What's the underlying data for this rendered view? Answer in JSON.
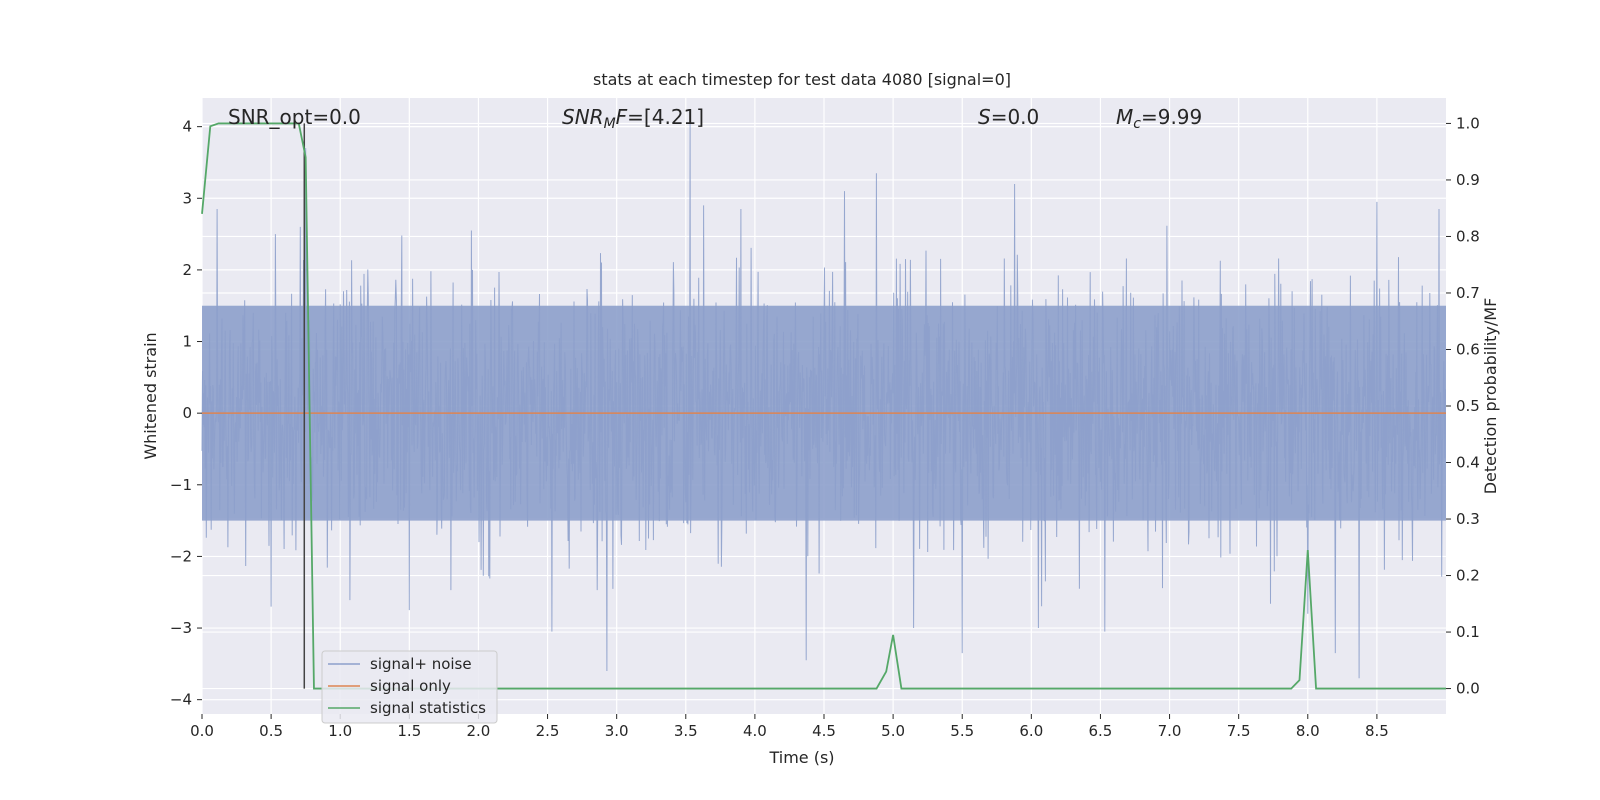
{
  "chart_data": {
    "type": "line",
    "title": "stats at each timestep for test data 4080 [signal=0]",
    "xlabel": "Time (s)",
    "ylabel": "Whitened strain",
    "y2label": "Detection probability/MF",
    "xlim": [
      0,
      9.0
    ],
    "ylim": [
      -4.2,
      4.4
    ],
    "y2lim": [
      -0.045,
      1.045
    ],
    "xticks": [
      0.0,
      0.5,
      1.0,
      1.5,
      2.0,
      2.5,
      3.0,
      3.5,
      4.0,
      4.5,
      5.0,
      5.5,
      6.0,
      6.5,
      7.0,
      7.5,
      8.0,
      8.5
    ],
    "xtick_labels": [
      "0.0",
      "0.5",
      "1.0",
      "1.5",
      "2.0",
      "2.5",
      "3.0",
      "3.5",
      "4.0",
      "4.5",
      "5.0",
      "5.5",
      "6.0",
      "6.5",
      "7.0",
      "7.5",
      "8.0",
      "8.5"
    ],
    "yticks": [
      4,
      3,
      2,
      1,
      0,
      -1,
      -2,
      -3,
      -4
    ],
    "ytick_labels": [
      "4",
      "3",
      "2",
      "1",
      "0",
      "−1",
      "−2",
      "−3",
      "−4"
    ],
    "y2ticks": [
      1.0,
      0.9,
      0.8,
      0.7,
      0.6,
      0.5,
      0.4,
      0.3,
      0.2,
      0.1,
      0.0
    ],
    "y2tick_labels": [
      "1.0",
      "0.9",
      "0.8",
      "0.7",
      "0.6",
      "0.5",
      "0.4",
      "0.3",
      "0.2",
      "0.1",
      "0.0"
    ],
    "grid": true,
    "legend_position": "lower-left",
    "annotations": {
      "snr_opt": "SNR_opt=0.0",
      "snr_mf_sym": "SNR",
      "snr_mf_sub": "M",
      "snr_mf_sym2": "F",
      "snr_mf_val": "=[4.21]",
      "s_sym": "S",
      "s_val": "=0.0",
      "mc_sym": "M",
      "mc_sub": "c",
      "mc_val": "=9.99"
    },
    "vertical_marker_x": 0.74,
    "series": [
      {
        "name": "signal+ noise",
        "color": "#8da0cb",
        "axis": "left",
        "kind": "noise",
        "sample_rate": 256,
        "core_amplitude": 1.5,
        "peaks": [
          {
            "x": 0.11,
            "y": 2.85
          },
          {
            "x": 0.5,
            "y": -2.7
          },
          {
            "x": 0.53,
            "y": 2.5
          },
          {
            "x": 0.71,
            "y": 2.6
          },
          {
            "x": 0.75,
            "y": 3.7
          },
          {
            "x": 1.5,
            "y": -2.75
          },
          {
            "x": 1.95,
            "y": 2.55
          },
          {
            "x": 2.53,
            "y": -3.05
          },
          {
            "x": 2.93,
            "y": -3.6
          },
          {
            "x": 3.53,
            "y": 4.05
          },
          {
            "x": 3.63,
            "y": 2.9
          },
          {
            "x": 3.9,
            "y": 2.85
          },
          {
            "x": 4.37,
            "y": -3.45
          },
          {
            "x": 4.65,
            "y": 3.1
          },
          {
            "x": 4.88,
            "y": 3.35
          },
          {
            "x": 5.15,
            "y": -3.0
          },
          {
            "x": 5.5,
            "y": -3.35
          },
          {
            "x": 5.88,
            "y": 3.2
          },
          {
            "x": 6.05,
            "y": -3.0
          },
          {
            "x": 6.53,
            "y": -3.05
          },
          {
            "x": 8.0,
            "y": -2.8
          },
          {
            "x": 8.2,
            "y": -3.35
          },
          {
            "x": 8.37,
            "y": -3.7
          },
          {
            "x": 8.5,
            "y": 2.95
          },
          {
            "x": 8.95,
            "y": 2.85
          }
        ]
      },
      {
        "name": "signal only",
        "color": "#dd8452",
        "axis": "left",
        "x": [
          0.0,
          9.0
        ],
        "y": [
          0.0,
          0.0
        ]
      },
      {
        "name": "signal statistics",
        "color": "#55a868",
        "axis": "right",
        "x": [
          0.0,
          0.06,
          0.12,
          0.25,
          0.5,
          0.7,
          0.75,
          0.81,
          1.0,
          2.0,
          3.0,
          4.0,
          4.88,
          4.95,
          5.0,
          5.06,
          5.5,
          6.0,
          7.0,
          7.88,
          7.94,
          8.0,
          8.06,
          8.12,
          8.5,
          9.0
        ],
        "y": [
          0.84,
          0.995,
          1.0,
          1.0,
          1.0,
          1.0,
          0.94,
          0.0,
          0.0,
          0.0,
          0.0,
          0.0,
          0.0,
          0.03,
          0.095,
          0.0,
          0.0,
          0.0,
          0.0,
          0.0,
          0.015,
          0.245,
          0.0,
          0.0,
          0.0,
          0.0
        ]
      }
    ]
  }
}
